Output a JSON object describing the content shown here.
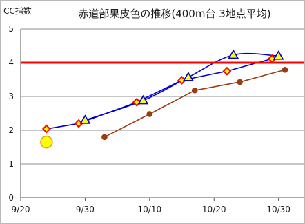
{
  "chart_data": {
    "type": "line",
    "title": "赤道部果皮色の推移(400m台 3地点平均)",
    "ylabel": "CC指数",
    "ylim": [
      0,
      5
    ],
    "yticks": [
      "0",
      "1",
      "2",
      "3",
      "4",
      "5"
    ],
    "x_axis": {
      "start": "9/20",
      "end": "11/3",
      "ticks": [
        "9/20",
        "9/30",
        "10/10",
        "10/20",
        "10/30"
      ]
    },
    "grid": true,
    "legend": "none",
    "reference_line": {
      "y": 4,
      "color": "#ff0000"
    },
    "series": [
      {
        "marker": "diamond",
        "color": "#0000cc",
        "marker_fill": "#ffff00",
        "marker_edge": "#ff0000",
        "smooth": false,
        "points": [
          {
            "x": "9/24",
            "y": 2.04
          },
          {
            "x": "9/29",
            "y": 2.2
          },
          {
            "x": "10/8",
            "y": 2.83
          },
          {
            "x": "10/15",
            "y": 3.48
          },
          {
            "x": "10/22",
            "y": 3.75
          },
          {
            "x": "10/29",
            "y": 4.12
          }
        ]
      },
      {
        "marker": "triangle",
        "color": "#0000cc",
        "marker_fill": "#ffff00",
        "marker_edge": "#0000cc",
        "smooth": true,
        "points": [
          {
            "x": "9/30",
            "y": 2.3
          },
          {
            "x": "10/9",
            "y": 2.88
          },
          {
            "x": "10/16",
            "y": 3.57
          },
          {
            "x": "10/23",
            "y": 4.23
          },
          {
            "x": "10/30",
            "y": 4.2
          }
        ]
      },
      {
        "marker": "circle",
        "color": "#9a3b10",
        "marker_fill": "#9a3b10",
        "marker_edge": "#9a3b10",
        "smooth": false,
        "points": [
          {
            "x": "10/3",
            "y": 1.8
          },
          {
            "x": "10/10",
            "y": 2.48
          },
          {
            "x": "10/17",
            "y": 3.18
          },
          {
            "x": "10/24",
            "y": 3.43
          },
          {
            "x": "10/31",
            "y": 3.79
          }
        ]
      },
      {
        "marker": "large-circle",
        "color": "#e6a000",
        "marker_fill": "#ffff00",
        "marker_edge": "#e6a000",
        "smooth": false,
        "points": [
          {
            "x": "9/24",
            "y": 1.65
          }
        ]
      }
    ]
  }
}
